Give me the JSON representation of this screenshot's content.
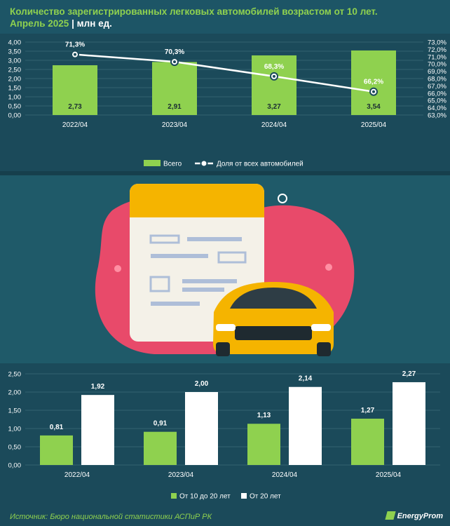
{
  "header": {
    "title_line1": "Количество зарегистрированных легковых автомобилей возрастом от 10 лет.",
    "title_sub": "Апрель 2025",
    "separator": "|",
    "unit": "млн ед."
  },
  "colors": {
    "green": "#8fd14f",
    "white": "#ffffff",
    "background": "#1b4a5a",
    "grid": "#3d6a78"
  },
  "chart_data": [
    {
      "type": "bar",
      "categories": [
        "2022/04",
        "2023/04",
        "2024/04",
        "2025/04"
      ],
      "series": [
        {
          "name": "Всего",
          "type": "bar",
          "axis": "left",
          "values": [
            2.73,
            2.91,
            3.27,
            3.54
          ],
          "labels": [
            "2,73",
            "2,91",
            "3,27",
            "3,54"
          ]
        },
        {
          "name": "Доля от всех автомобилей",
          "type": "line",
          "axis": "right",
          "values": [
            71.3,
            70.3,
            68.3,
            66.2
          ],
          "labels": [
            "71,3%",
            "70,3%",
            "68,3%",
            "66,2%"
          ]
        }
      ],
      "y_left": {
        "min": 0,
        "max": 4,
        "ticks": [
          "0,00",
          "0,50",
          "1,00",
          "1,50",
          "2,00",
          "2,50",
          "3,00",
          "3,50",
          "4,00"
        ]
      },
      "y_right": {
        "min": 63,
        "max": 73,
        "ticks": [
          "63,0%",
          "64,0%",
          "65,0%",
          "66,0%",
          "67,0%",
          "68,0%",
          "69,0%",
          "70,0%",
          "71,0%",
          "72,0%",
          "73,0%"
        ]
      },
      "legend_position": "bottom"
    },
    {
      "type": "bar",
      "categories": [
        "2022/04",
        "2023/04",
        "2024/04",
        "2025/04"
      ],
      "series": [
        {
          "name": "От 10 до 20 лет",
          "values": [
            0.81,
            0.91,
            1.13,
            1.27
          ],
          "labels": [
            "0,81",
            "0,91",
            "1,13",
            "1,27"
          ]
        },
        {
          "name": "От 20 лет",
          "values": [
            1.92,
            2.0,
            2.14,
            2.27
          ],
          "labels": [
            "1,92",
            "2,00",
            "2,14",
            "2,27"
          ]
        }
      ],
      "y_left": {
        "min": 0,
        "max": 2.5,
        "ticks": [
          "0,00",
          "0,50",
          "1,00",
          "1,50",
          "2,00",
          "2,50"
        ]
      },
      "legend_position": "bottom"
    }
  ],
  "footer": {
    "source": "Источник: Бюро национальной статистики АСПиР РК",
    "logo": "EnergyProm"
  }
}
